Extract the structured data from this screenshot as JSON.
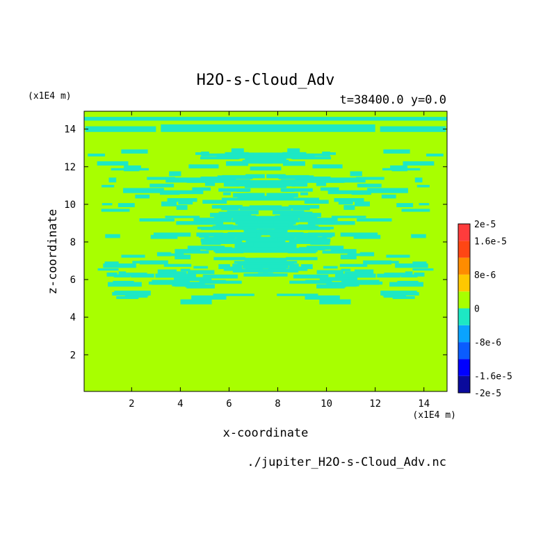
{
  "chart_data": {
    "type": "heatmap",
    "title": "H2O-s-Cloud_Adv",
    "subtitle": "t=38400.0 y=0.0",
    "xlabel": "x-coordinate",
    "ylabel": "z-coordinate",
    "x_unit": "(x1E4 m)",
    "y_unit": "(x1E4 m)",
    "footer": "./jupiter_H2O-s-Cloud_Adv.nc",
    "xlim": [
      0.05,
      14.95
    ],
    "ylim": [
      0.05,
      14.95
    ],
    "x_ticks": [
      2,
      4,
      6,
      8,
      10,
      12,
      14
    ],
    "y_ticks": [
      2,
      4,
      6,
      8,
      10,
      12,
      14
    ],
    "background_value_color": "#a8ff00",
    "anomaly_color": "#1de8c4",
    "colorbar": {
      "colors": [
        "#0a0a9c",
        "#0000ff",
        "#0a5cff",
        "#0aa3ff",
        "#1de8c4",
        "#a8ff00",
        "#ffc800",
        "#ff8c00",
        "#ff4614",
        "#ff3c3c"
      ],
      "tick_labels": [
        "2e-5",
        "1.6e-5",
        "8e-6",
        "0",
        "-8e-6",
        "-1.6e-5",
        "-2e-5"
      ],
      "tick_values": [
        2e-05,
        1.6e-05,
        8e-06,
        0,
        -8e-06,
        -1.6e-05,
        -2e-05
      ],
      "range": [
        -2e-05,
        2e-05
      ]
    },
    "negative_regions": [
      {
        "x": [
          0.05,
          14.95
        ],
        "z": [
          14.45,
          14.65
        ]
      },
      {
        "x": [
          3.2,
          12.0
        ],
        "z": [
          13.85,
          14.25
        ]
      },
      {
        "x": [
          0.1,
          3.0
        ],
        "z": [
          13.85,
          14.15
        ]
      },
      {
        "x": [
          12.2,
          14.9
        ],
        "z": [
          13.85,
          14.15
        ]
      },
      {
        "x": [
          5.7,
          9.7
        ],
        "z": [
          10.2,
          10.35
        ]
      }
    ]
  }
}
